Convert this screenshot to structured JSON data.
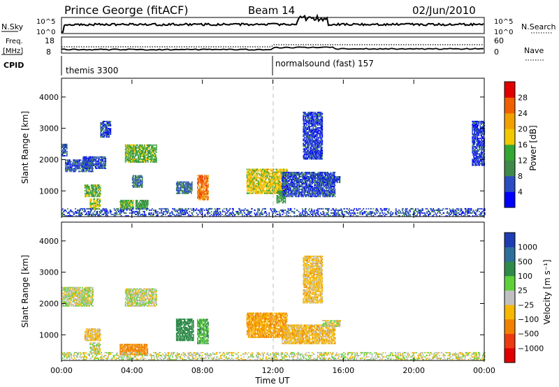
{
  "header": {
    "station": "Prince George (fitACF)",
    "beam": "Beam 14",
    "date": "02/Jun/2010"
  },
  "left_labels": {
    "nsky": "N.Sky",
    "freq_top": "Freq.",
    "freq_bottom": "[MHz]",
    "cpid": "CPID"
  },
  "right_labels": {
    "nsearch": "N.Search",
    "nave": "Nave"
  },
  "noise_axis": {
    "top": "10^5",
    "bottom": "10^0"
  },
  "freq_axis": {
    "top": "18",
    "bottom": "8"
  },
  "nave_axis": {
    "top": "60",
    "bottom": "0"
  },
  "cpid": {
    "first": "themis 3300",
    "second": "normalsound (fast) 157"
  },
  "x_axis": {
    "title": "Time UT",
    "ticks": [
      "00:00",
      "04:00",
      "08:00",
      "12:00",
      "16:00",
      "20:00",
      "00:00"
    ],
    "range_hours": [
      0,
      24
    ]
  },
  "y_axis": {
    "title": "Slant Range [km]",
    "ticks": [
      "1000",
      "2000",
      "3000",
      "4000"
    ],
    "range_km": [
      180,
      4600
    ]
  },
  "power_colorbar": {
    "title": "Power [dB]",
    "labels": [
      "4",
      "8",
      "12",
      "16",
      "20",
      "24",
      "28"
    ],
    "colors": [
      "#0000ff",
      "#2b4dc2",
      "#3f8a4a",
      "#33a633",
      "#f2c800",
      "#f0a000",
      "#f06000",
      "#e00000"
    ]
  },
  "velocity_colorbar": {
    "title": "Velocity [m s⁻¹]",
    "labels": [
      "1000",
      "500",
      "100",
      "25",
      "−25",
      "−100",
      "−500",
      "−1000"
    ],
    "colors": [
      "#1e3cb4",
      "#2e6e9a",
      "#2f8a4a",
      "#5fd03a",
      "#c0c0c0",
      "#f6b800",
      "#f08000",
      "#ee3a10",
      "#e00000"
    ]
  },
  "chart_data": [
    {
      "type": "heatmap",
      "panel": "power",
      "xlabel": "Time UT",
      "ylabel": "Slant Range [km]",
      "xlim": [
        0,
        24
      ],
      "ylim": [
        180,
        4600
      ],
      "colorbar": "Power [dB]",
      "regions": [
        {
          "t": [
            0.0,
            0.3
          ],
          "r": [
            2100,
            2500
          ],
          "dB": 6
        },
        {
          "t": [
            0.2,
            1.8
          ],
          "r": [
            1600,
            2000
          ],
          "dB": 6
        },
        {
          "t": [
            1.2,
            2.5
          ],
          "r": [
            1700,
            2100
          ],
          "dB": 6
        },
        {
          "t": [
            1.3,
            2.2
          ],
          "r": [
            800,
            1200
          ],
          "dB": 14
        },
        {
          "t": [
            1.6,
            2.2
          ],
          "r": [
            400,
            750
          ],
          "dB": 16
        },
        {
          "t": [
            2.2,
            2.8
          ],
          "r": [
            2700,
            3200
          ],
          "dB": 6
        },
        {
          "t": [
            3.3,
            4.1
          ],
          "r": [
            400,
            700
          ],
          "dB": 14
        },
        {
          "t": [
            4.2,
            4.9
          ],
          "r": [
            400,
            700
          ],
          "dB": 12
        },
        {
          "t": [
            3.6,
            5.4
          ],
          "r": [
            1900,
            2450
          ],
          "dB": 14
        },
        {
          "t": [
            4.0,
            4.6
          ],
          "r": [
            1100,
            1500
          ],
          "dB": 8
        },
        {
          "t": [
            6.5,
            7.4
          ],
          "r": [
            900,
            1300
          ],
          "dB": 8
        },
        {
          "t": [
            7.7,
            8.3
          ],
          "r": [
            700,
            1500
          ],
          "dB": 25
        },
        {
          "t": [
            10.5,
            12.8
          ],
          "r": [
            900,
            1700
          ],
          "dB": 18
        },
        {
          "t": [
            12.2,
            12.7
          ],
          "r": [
            600,
            1000
          ],
          "dB": 12
        },
        {
          "t": [
            12.5,
            15.5
          ],
          "r": [
            800,
            1600
          ],
          "dB": 6
        },
        {
          "t": [
            14.5,
            15.8
          ],
          "r": [
            1250,
            1450
          ],
          "dB": 6
        },
        {
          "t": [
            13.7,
            14.8
          ],
          "r": [
            2000,
            3500
          ],
          "dB": 5
        },
        {
          "t": [
            23.3,
            24.0
          ],
          "r": [
            1800,
            3200
          ],
          "dB": 5
        },
        {
          "t": [
            0.0,
            24.0
          ],
          "r": [
            180,
            450
          ],
          "dB": 6
        }
      ]
    },
    {
      "type": "heatmap",
      "panel": "velocity",
      "xlabel": "Time UT",
      "ylabel": "Slant Range [km]",
      "xlim": [
        0,
        24
      ],
      "ylim": [
        180,
        4600
      ],
      "colorbar": "Velocity [m s⁻¹]",
      "regions": [
        {
          "t": [
            0.0,
            1.8
          ],
          "r": [
            1900,
            2500
          ],
          "v": 0
        },
        {
          "t": [
            1.3,
            2.2
          ],
          "r": [
            800,
            1200
          ],
          "v": -50
        },
        {
          "t": [
            1.6,
            2.2
          ],
          "r": [
            400,
            750
          ],
          "v": 0
        },
        {
          "t": [
            3.3,
            4.9
          ],
          "r": [
            350,
            700
          ],
          "v": -150
        },
        {
          "t": [
            3.6,
            5.4
          ],
          "r": [
            1900,
            2450
          ],
          "v": 0
        },
        {
          "t": [
            6.5,
            7.5
          ],
          "r": [
            800,
            1500
          ],
          "v": 200
        },
        {
          "t": [
            7.7,
            8.3
          ],
          "r": [
            700,
            1500
          ],
          "v": 100
        },
        {
          "t": [
            10.5,
            12.8
          ],
          "r": [
            900,
            1700
          ],
          "v": -100
        },
        {
          "t": [
            12.5,
            15.5
          ],
          "r": [
            700,
            1300
          ],
          "v": -60
        },
        {
          "t": [
            14.8,
            15.8
          ],
          "r": [
            1250,
            1450
          ],
          "v": 0
        },
        {
          "t": [
            13.7,
            14.8
          ],
          "r": [
            2000,
            3500
          ],
          "v": -50
        },
        {
          "t": [
            0.0,
            24.0
          ],
          "r": [
            180,
            450
          ],
          "v": 0
        }
      ]
    }
  ]
}
